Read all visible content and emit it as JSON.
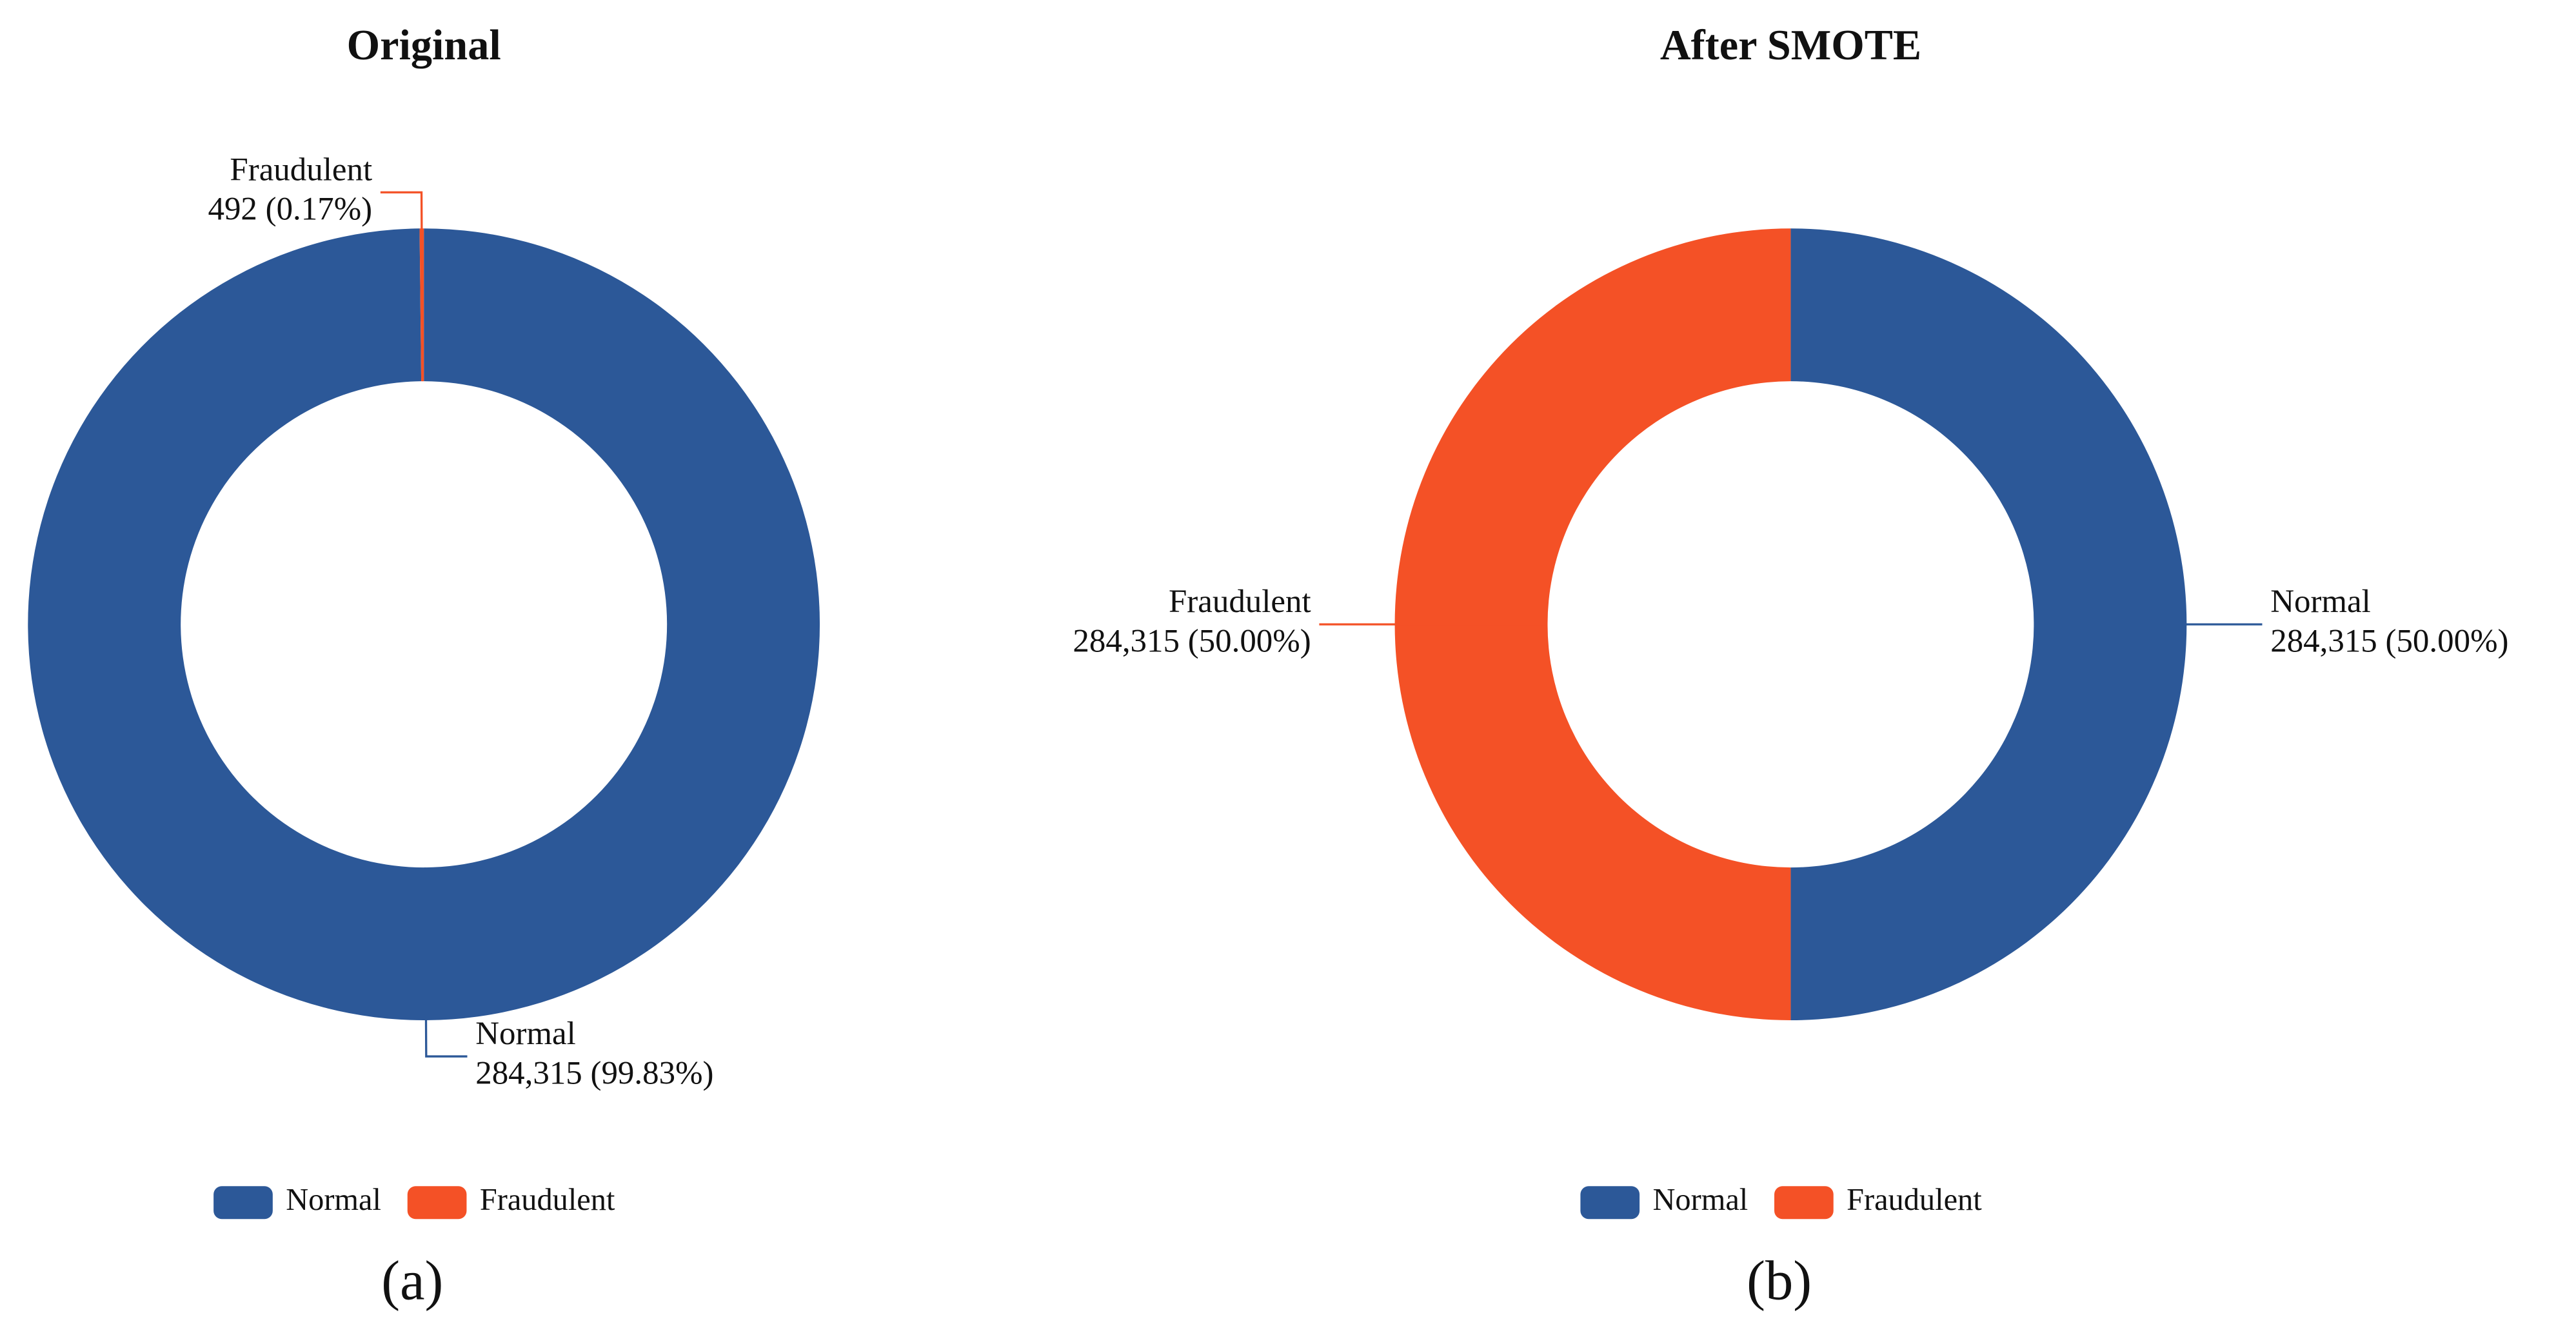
{
  "chart_data": [
    {
      "type": "pie",
      "title": "Original",
      "caption": "(a)",
      "categories": [
        "Normal",
        "Fraudulent"
      ],
      "values": [
        284315,
        492
      ],
      "value_labels": [
        "284,315 (99.83%)",
        "492 (0.17%)"
      ],
      "colors": [
        "#2c5898",
        "#f45126"
      ],
      "donut": true,
      "legend": "bottom"
    },
    {
      "type": "pie",
      "title": "After SMOTE",
      "caption": "(b)",
      "categories": [
        "Normal",
        "Fraudulent"
      ],
      "values": [
        284315,
        284315
      ],
      "value_labels": [
        "284,315 (50.00%)",
        "284,315 (50.00%)"
      ],
      "colors": [
        "#2c5898",
        "#f45126"
      ],
      "donut": true,
      "legend": "bottom"
    }
  ]
}
